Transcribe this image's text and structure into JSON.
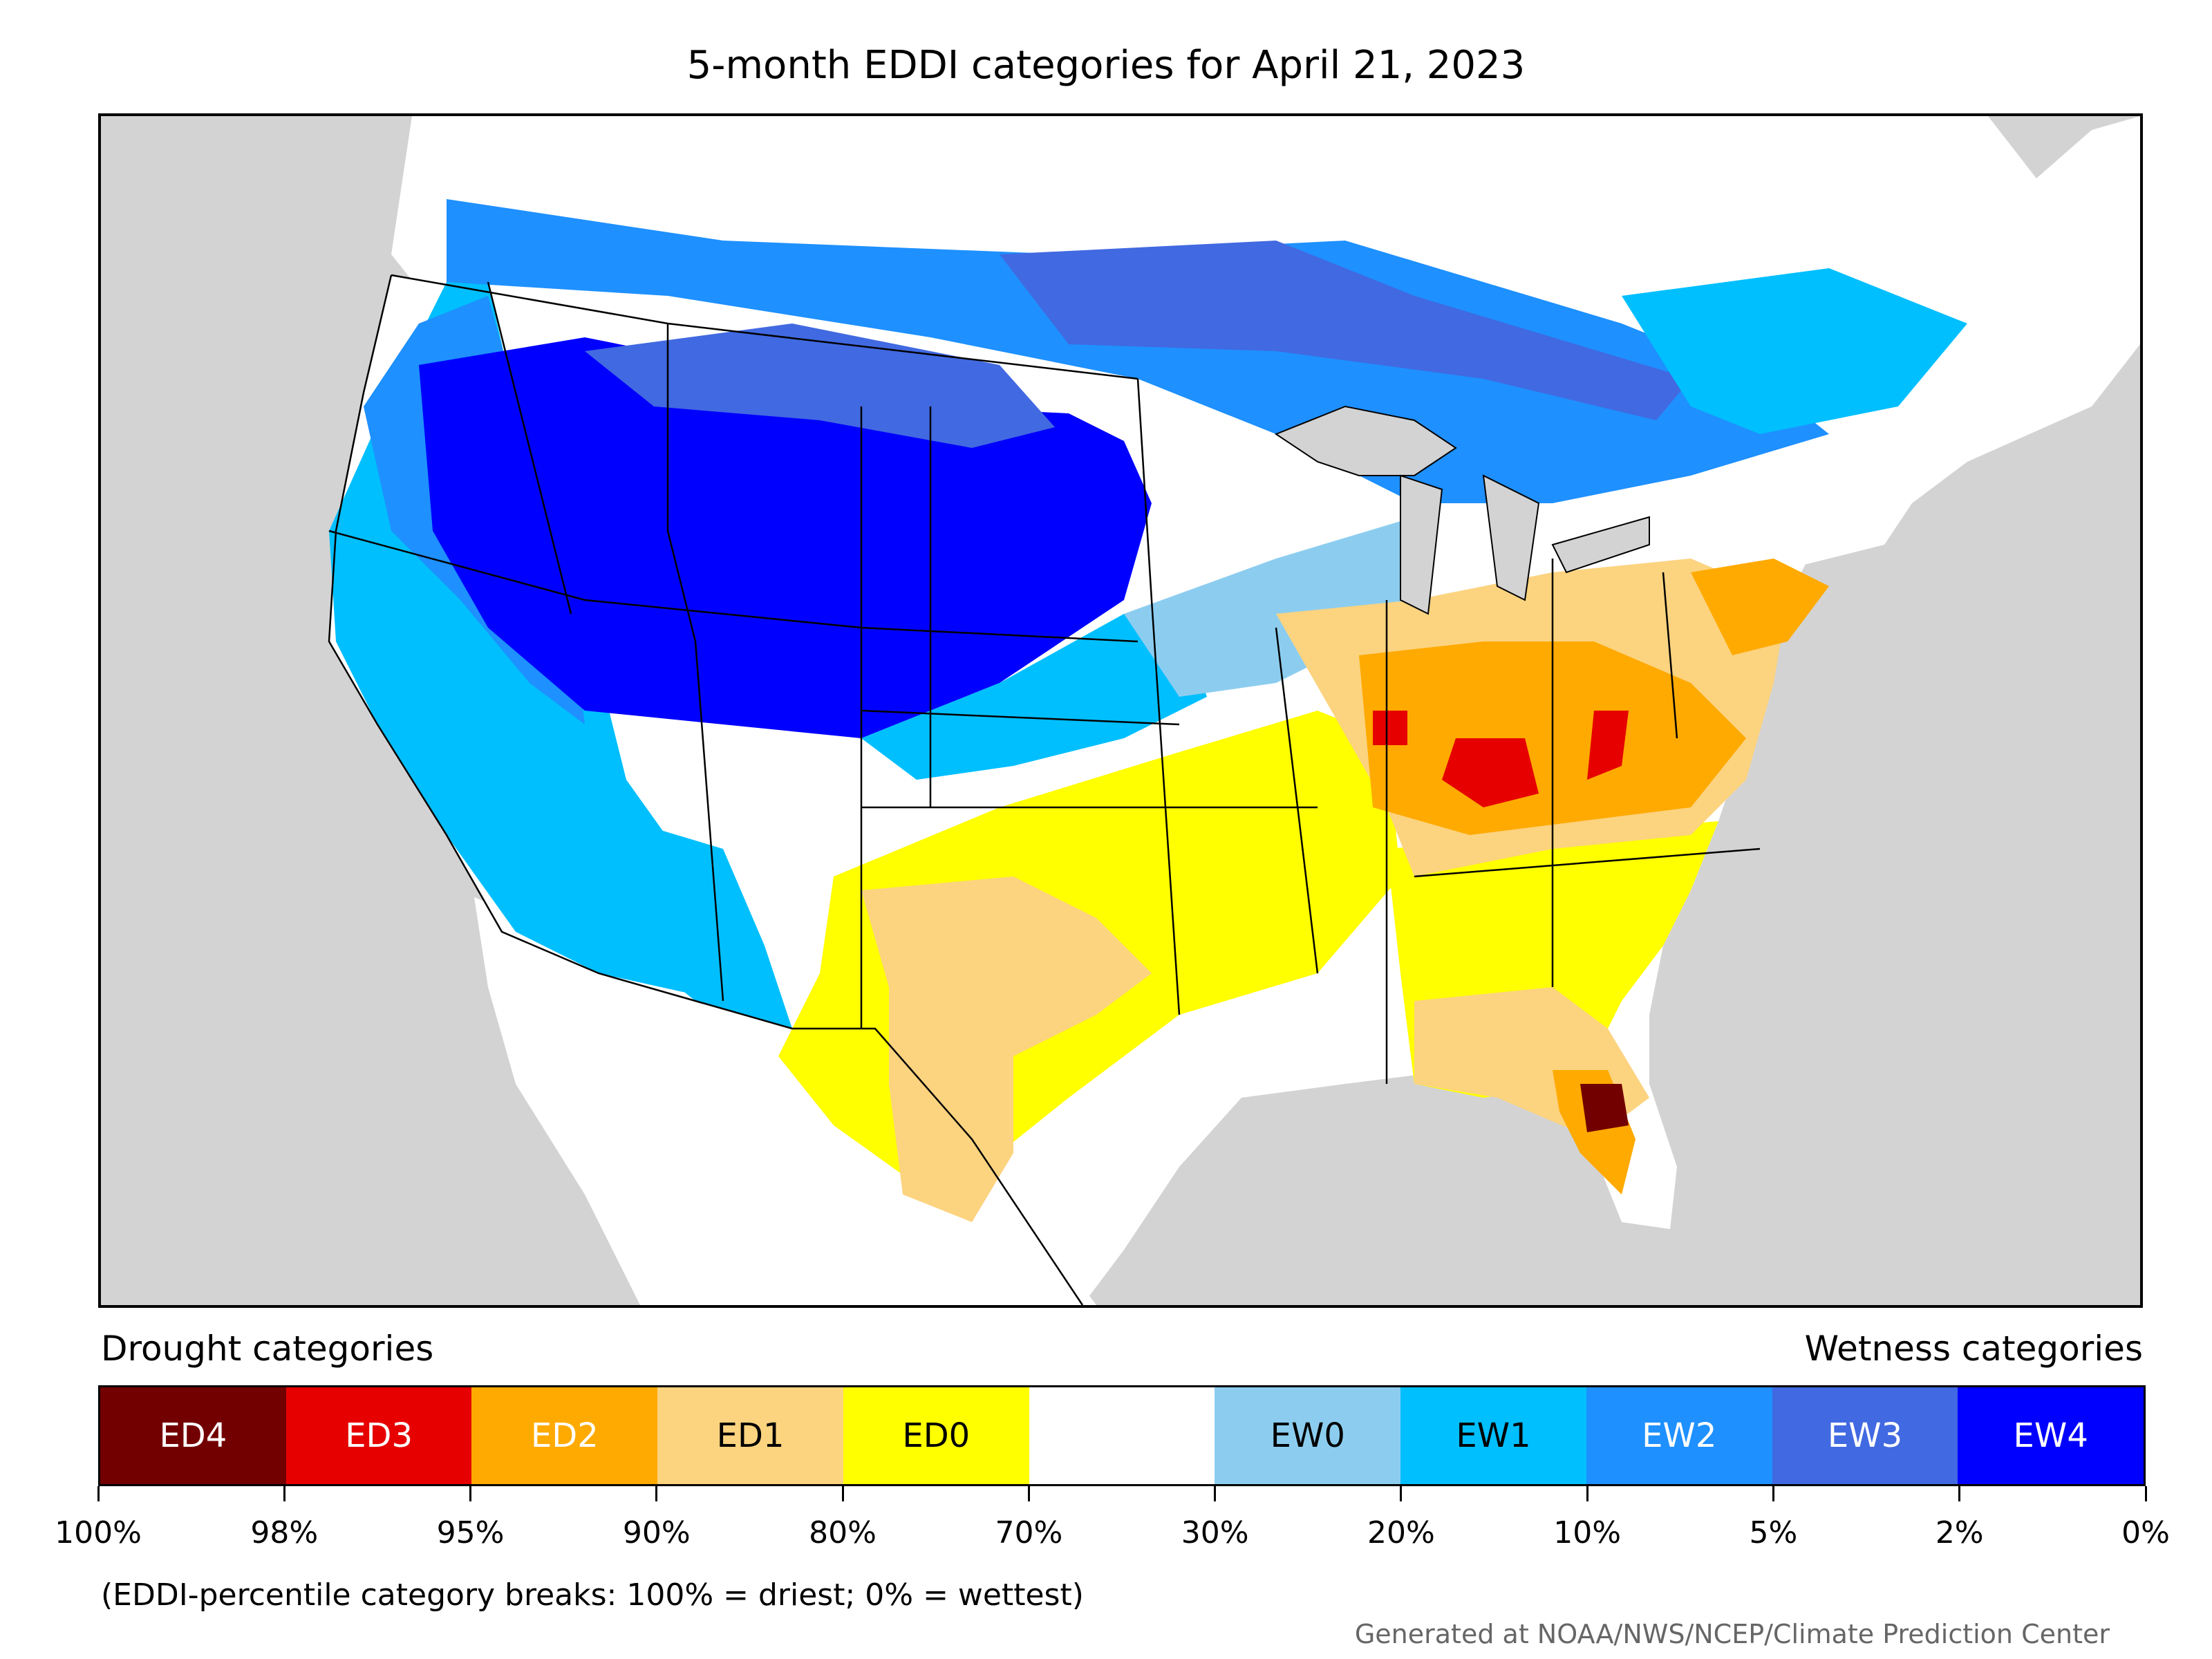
{
  "title": "5-month EDDI categories for April 21, 2023",
  "legend": {
    "drought_label": "Drought categories",
    "wetness_label": "Wetness categories",
    "categories": [
      {
        "label": "ED4",
        "color": "#730000",
        "text_color": "#ffffff"
      },
      {
        "label": "ED3",
        "color": "#e60000",
        "text_color": "#ffffff"
      },
      {
        "label": "ED2",
        "color": "#ffaa00",
        "text_color": "#ffffff"
      },
      {
        "label": "ED1",
        "color": "#fcd37f",
        "text_color": "#000000"
      },
      {
        "label": "ED0",
        "color": "#ffff00",
        "text_color": "#000000"
      },
      {
        "label": "",
        "color": "#ffffff",
        "text_color": "#000000"
      },
      {
        "label": "EW0",
        "color": "#8ccdef",
        "text_color": "#000000"
      },
      {
        "label": "EW1",
        "color": "#00bfff",
        "text_color": "#000000"
      },
      {
        "label": "EW2",
        "color": "#1e90ff",
        "text_color": "#ffffff"
      },
      {
        "label": "EW3",
        "color": "#4169e1",
        "text_color": "#ffffff"
      },
      {
        "label": "EW4",
        "color": "#0000ff",
        "text_color": "#ffffff"
      }
    ],
    "breaks": [
      "100%",
      "98%",
      "95%",
      "90%",
      "80%",
      "70%",
      "30%",
      "20%",
      "10%",
      "5%",
      "2%",
      "0%"
    ]
  },
  "footnote": "(EDDI-percentile category breaks: 100% = driest; 0% = wettest)",
  "credit": "Generated at NOAA/NWS/NCEP/Climate Prediction Center",
  "map": {
    "background_color": "#d3d3d3",
    "region_colors": {
      "ew4": "#0000ff",
      "ew3": "#4169e1",
      "ew2": "#1e90ff",
      "ew1": "#00bfff",
      "ew0": "#8ccdef",
      "ed0": "#ffff00",
      "ed1": "#fcd37f",
      "ed2": "#ffaa00",
      "ed3": "#e60000",
      "ed4": "#730000"
    }
  }
}
